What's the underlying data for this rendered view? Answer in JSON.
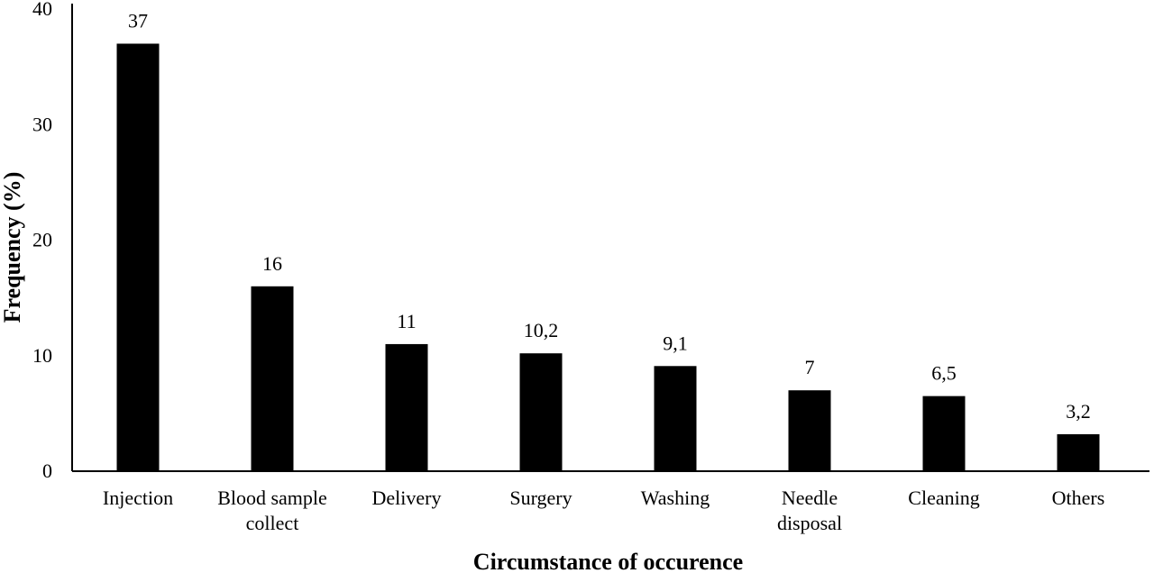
{
  "chart_data": {
    "type": "bar",
    "title": "",
    "xlabel": "Circumstance of occurence",
    "ylabel": "Frequency (%)",
    "ylim": [
      0,
      40
    ],
    "yticks": [
      0,
      10,
      20,
      30,
      40
    ],
    "grid": false,
    "bar_color": "#000000",
    "categories": [
      [
        "Injection"
      ],
      [
        "Blood sample",
        "collect"
      ],
      [
        "Delivery"
      ],
      [
        "Surgery"
      ],
      [
        "Washing"
      ],
      [
        "Needle",
        "disposal"
      ],
      [
        "Cleaning"
      ],
      [
        "Others"
      ]
    ],
    "values": [
      37,
      16,
      11,
      10.2,
      9.1,
      7,
      6.5,
      3.2
    ],
    "data_labels": [
      "37",
      "16",
      "11",
      "10,2",
      "9,1",
      "7",
      "6,5",
      "3,2"
    ]
  }
}
